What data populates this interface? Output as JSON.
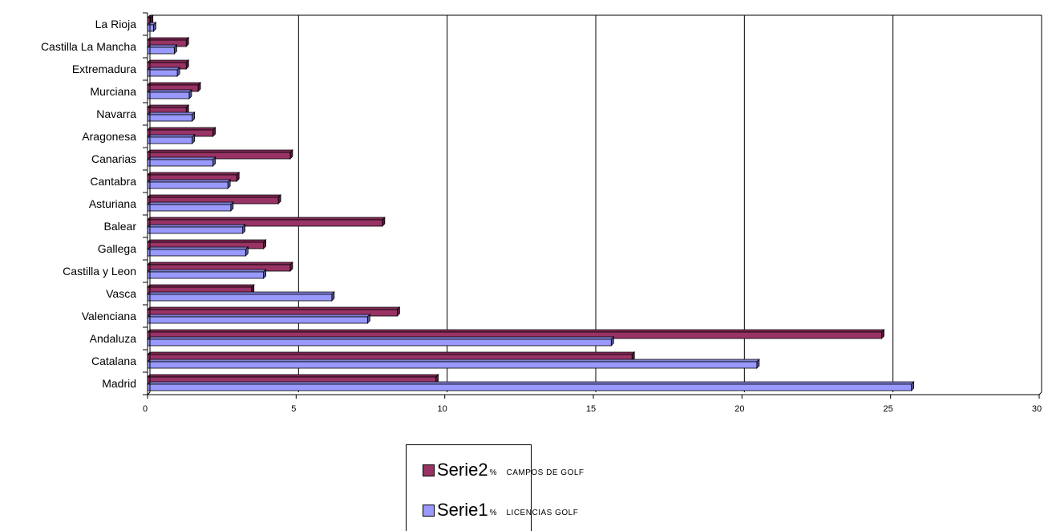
{
  "chart_data": {
    "type": "bar",
    "orientation": "horizontal",
    "categories": [
      "Madrid",
      "Catalana",
      "Andaluza",
      "Valenciana",
      "Vasca",
      "Castilla y Leon",
      "Gallega",
      "Balear",
      "Asturiana",
      "Cantabra",
      "Canarias",
      "Aragonesa",
      "Navarra",
      "Murciana",
      "Extremadura",
      "Castilla La Mancha",
      "La Rioja"
    ],
    "series": [
      {
        "name": "Serie2",
        "suffix": "%",
        "note": "CAMPOS DE GOLF",
        "color": "#993366",
        "values": [
          9.7,
          16.3,
          24.7,
          8.4,
          3.5,
          4.8,
          3.9,
          7.9,
          4.4,
          3.0,
          4.8,
          2.2,
          1.3,
          1.7,
          1.3,
          1.3,
          0.1
        ]
      },
      {
        "name": "Serie1",
        "suffix": "%",
        "note": "LICENCIAS GOLF",
        "color": "#9999ff",
        "values": [
          25.7,
          20.5,
          15.6,
          7.4,
          6.2,
          3.9,
          3.3,
          3.2,
          2.8,
          2.7,
          2.2,
          1.5,
          1.5,
          1.4,
          1.0,
          0.9,
          0.2
        ]
      }
    ],
    "xlim": [
      0,
      30
    ],
    "xticks": [
      0,
      5,
      10,
      15,
      20,
      25,
      30
    ],
    "grid": "vertical major lines",
    "legend_position": "bottom-center"
  }
}
